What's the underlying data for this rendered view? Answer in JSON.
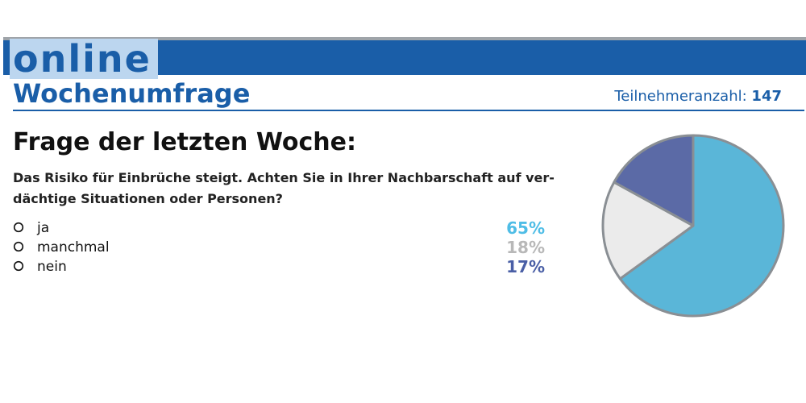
{
  "header": {
    "brand": "online",
    "title": "Wochenumfrage",
    "participants_label": "Teilnehmeranzahl:",
    "participants_count": "147"
  },
  "question": {
    "heading": "Frage der letzten Woche:",
    "text": "Das Risiko für Einbrüche steigt. Achten Sie in Ihrer Nachbarschaft auf ver-\ndächtige Situationen oder Personen?"
  },
  "answers": [
    {
      "label": "ja",
      "percent_text": "65%",
      "color": "#4fbde6"
    },
    {
      "label": "manchmal",
      "percent_text": "18%",
      "color": "#b8b8b8"
    },
    {
      "label": "nein",
      "percent_text": "17%",
      "color": "#4a5fa6"
    }
  ],
  "colors": {
    "brand_blue": "#1a5ea8",
    "brand_light": "#bcd6ef",
    "pie_border": "#8a8f94"
  },
  "chart_data": {
    "type": "pie",
    "title": "",
    "categories": [
      "ja",
      "manchmal",
      "nein"
    ],
    "values": [
      65,
      18,
      17
    ],
    "unit": "%",
    "slice_colors": [
      "#5ab6d8",
      "#ebebeb",
      "#5b6aa6"
    ],
    "legend": "left"
  }
}
